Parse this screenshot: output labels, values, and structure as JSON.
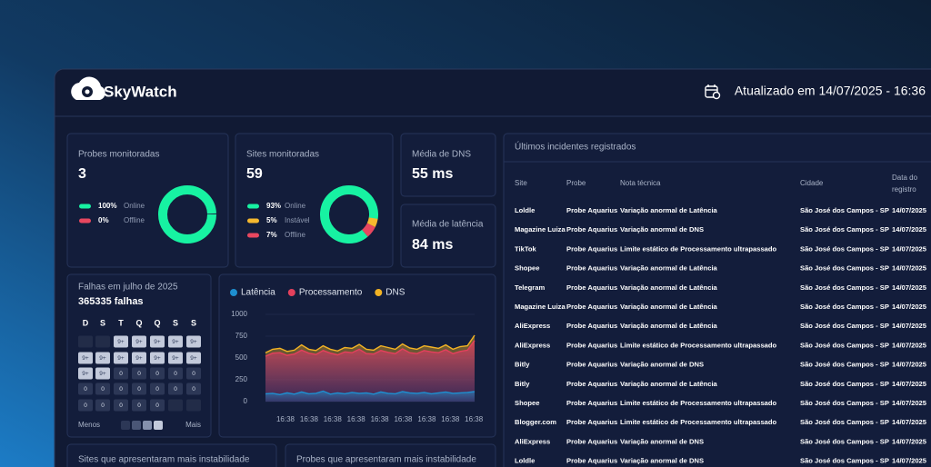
{
  "header": {
    "brand": "SkyWatch",
    "updated": "Atualizado em 14/07/2025 - 16:36"
  },
  "probes": {
    "title": "Probes monitoradas",
    "value": 3,
    "chart_data": {
      "type": "pie",
      "categories": [
        "Online",
        "Offline"
      ],
      "values": [
        100,
        0
      ],
      "value_labels": [
        "100%",
        "0%"
      ],
      "colors": [
        "#17f2a2",
        "#e8475f"
      ]
    }
  },
  "sites": {
    "title": "Sites monitoradas",
    "value": 59,
    "chart_data": {
      "type": "pie",
      "categories": [
        "Online",
        "Instável",
        "Offline"
      ],
      "values": [
        93,
        5,
        7
      ],
      "value_labels": [
        "93%",
        "5%",
        "7%"
      ],
      "colors": [
        "#17f2a2",
        "#f5b82e",
        "#e8475f"
      ]
    }
  },
  "dns": {
    "title": "Média de DNS",
    "value": "55 ms"
  },
  "latency": {
    "title": "Média de latência",
    "value": "84 ms"
  },
  "failures": {
    "title": "Falhas em julho de 2025",
    "total": "365335 falhas",
    "weekdays": [
      "D",
      "S",
      "T",
      "Q",
      "Q",
      "S",
      "S"
    ],
    "cells": [
      [
        null,
        null,
        "9+",
        "9+",
        "9+",
        "9+",
        "9+"
      ],
      [
        "9+",
        "9+",
        "9+",
        "9+",
        "9+",
        "9+",
        "9+"
      ],
      [
        "9+",
        "9+",
        "0",
        "0",
        "0",
        "0",
        "0"
      ],
      [
        "0",
        "0",
        "0",
        "0",
        "0",
        "0",
        "0"
      ],
      [
        "0",
        "0",
        "0",
        "0",
        "0",
        null,
        null
      ]
    ],
    "legend_less": "Menos",
    "legend_more": "Mais"
  },
  "line_chart": {
    "type": "line",
    "series": [
      {
        "name": "Latência",
        "color": "#1e8fd0",
        "values": [
          90,
          95,
          80,
          100,
          85,
          110,
          90,
          95,
          120,
          85,
          100,
          90,
          105,
          95,
          100,
          85,
          110,
          95,
          90,
          115,
          100,
          95,
          105,
          90,
          100,
          110,
          95,
          100,
          105,
          115
        ]
      },
      {
        "name": "Processamento",
        "color": "#e4405c",
        "values": [
          520,
          555,
          560,
          530,
          545,
          590,
          555,
          540,
          585,
          555,
          535,
          570,
          560,
          600,
          550,
          545,
          585,
          565,
          550,
          605,
          560,
          550,
          585,
          570,
          560,
          595,
          550,
          575,
          590,
          700
        ]
      },
      {
        "name": "DNS",
        "color": "#f2b324",
        "values": [
          560,
          600,
          610,
          575,
          590,
          650,
          600,
          585,
          640,
          600,
          580,
          620,
          610,
          655,
          600,
          590,
          640,
          620,
          600,
          660,
          615,
          600,
          640,
          625,
          610,
          650,
          600,
          630,
          640,
          760
        ]
      }
    ],
    "ylim": [
      0,
      1000
    ],
    "yticks": [
      0,
      250,
      500,
      750,
      1000
    ],
    "x_labels": [
      "16:38",
      "16:38",
      "16:38",
      "16:38",
      "16:38",
      "16:38",
      "16:38",
      "16:38",
      "16:38"
    ]
  },
  "incidents": {
    "title": "Últimos incidentes registrados",
    "columns": [
      "Site",
      "Probe",
      "Nota técnica",
      "Cidade",
      "Data do registro"
    ],
    "rows": [
      [
        "Loldle",
        "Probe Aquarius",
        "Variação anormal de Latência",
        "São José dos Campos - SP",
        "14/07/2025"
      ],
      [
        "Magazine Luiza",
        "Probe Aquarius",
        "Variação anormal de DNS",
        "São José dos Campos - SP",
        "14/07/2025"
      ],
      [
        "TikTok",
        "Probe Aquarius",
        "Limite estático de Processamento ultrapassado",
        "São José dos Campos - SP",
        "14/07/2025"
      ],
      [
        "Shopee",
        "Probe Aquarius",
        "Variação anormal de Latência",
        "São José dos Campos - SP",
        "14/07/2025"
      ],
      [
        "Telegram",
        "Probe Aquarius",
        "Variação anormal de Latência",
        "São José dos Campos - SP",
        "14/07/2025"
      ],
      [
        "Magazine Luiza",
        "Probe Aquarius",
        "Variação anormal de Latência",
        "São José dos Campos - SP",
        "14/07/2025"
      ],
      [
        "AliExpress",
        "Probe Aquarius",
        "Variação anormal de Latência",
        "São José dos Campos - SP",
        "14/07/2025"
      ],
      [
        "AliExpress",
        "Probe Aquarius",
        "Limite estático de Processamento ultrapassado",
        "São José dos Campos - SP",
        "14/07/2025"
      ],
      [
        "Bitly",
        "Probe Aquarius",
        "Variação anormal de DNS",
        "São José dos Campos - SP",
        "14/07/2025"
      ],
      [
        "Bitly",
        "Probe Aquarius",
        "Variação anormal de Latência",
        "São José dos Campos - SP",
        "14/07/2025"
      ],
      [
        "Shopee",
        "Probe Aquarius",
        "Limite estático de Processamento ultrapassado",
        "São José dos Campos - SP",
        "14/07/2025"
      ],
      [
        "Blogger.com",
        "Probe Aquarius",
        "Limite estático de Processamento ultrapassado",
        "São José dos Campos - SP",
        "14/07/2025"
      ],
      [
        "AliExpress",
        "Probe Aquarius",
        "Variação anormal de DNS",
        "São José dos Campos - SP",
        "14/07/2025"
      ],
      [
        "Loldle",
        "Probe Aquarius",
        "Variação anormal de DNS",
        "São José dos Campos - SP",
        "14/07/2025"
      ]
    ]
  },
  "sites_instability": {
    "title": "Sites que apresentaram mais instabilidade"
  },
  "probes_instability": {
    "title": "Probes que apresentaram mais instabilidade"
  }
}
